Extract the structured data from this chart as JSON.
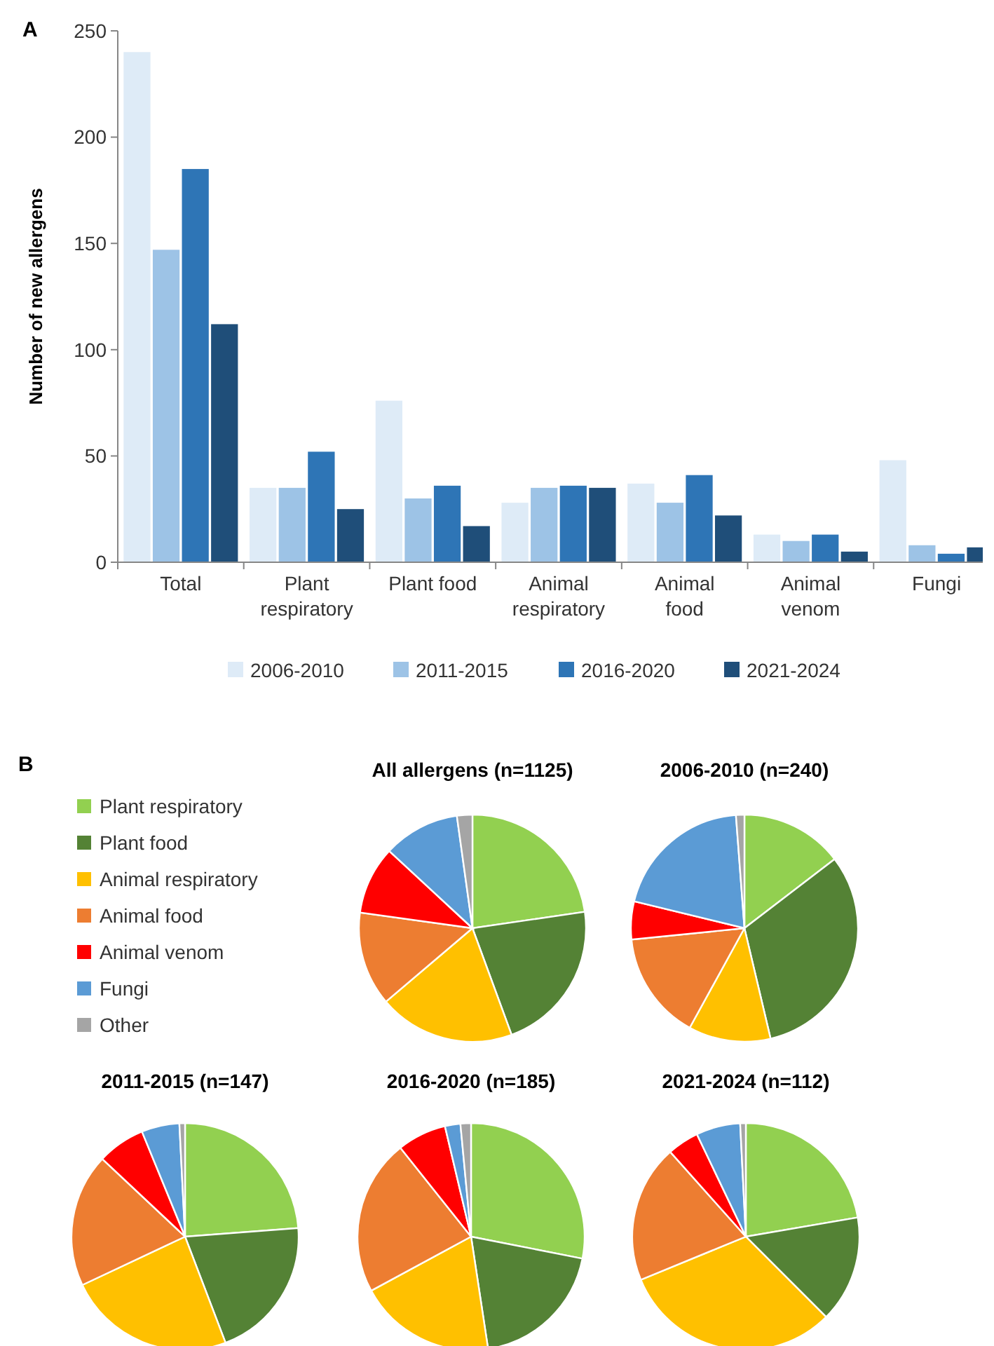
{
  "chart_data": [
    {
      "type": "bar",
      "annotations": [
        "A"
      ],
      "ylabel": "Number of new allergens",
      "categories": [
        "Total",
        "Plant respiratory",
        "Plant food",
        "Animal respiratory",
        "Animal food",
        "Animal venom",
        "Fungi"
      ],
      "series": [
        {
          "name": "2006-2010",
          "color": "#deebf7",
          "values": [
            240,
            35,
            76,
            28,
            37,
            13,
            48
          ]
        },
        {
          "name": "2011-2015",
          "color": "#9dc3e6",
          "values": [
            147,
            35,
            30,
            35,
            28,
            10,
            8
          ]
        },
        {
          "name": "2016-2020",
          "color": "#2e75b6",
          "values": [
            185,
            52,
            36,
            36,
            41,
            13,
            4
          ]
        },
        {
          "name": "2021-2024",
          "color": "#1f4e79",
          "values": [
            112,
            25,
            17,
            35,
            22,
            5,
            7
          ]
        }
      ],
      "ylim": [
        0,
        250
      ],
      "yticks": [
        0,
        50,
        100,
        150,
        200,
        250
      ],
      "legend": "bottom",
      "grid": false
    },
    {
      "type": "pie",
      "title": "All allergens (n=1125)",
      "annotations": [
        "B"
      ],
      "legend": "left",
      "categories": [
        "Plant respiratory",
        "Plant food",
        "Animal respiratory",
        "Animal food",
        "Animal venom",
        "Fungi",
        "Other"
      ],
      "values": [
        22.7,
        21.7,
        19.4,
        13.4,
        9.7,
        10.9,
        2.2
      ],
      "colors": [
        "#92d050",
        "#548235",
        "#ffc000",
        "#ed7d31",
        "#ff0000",
        "#5b9bd5",
        "#a5a5a5"
      ]
    },
    {
      "type": "pie",
      "title": "2006-2010 (n=240)",
      "categories": [
        null,
        null,
        null,
        null,
        null,
        null,
        null
      ],
      "values": [
        14.6,
        31.7,
        11.7,
        15.4,
        5.4,
        20.0,
        1.2
      ],
      "colors": [
        "#92d050",
        "#548235",
        "#ffc000",
        "#ed7d31",
        "#ff0000",
        "#5b9bd5",
        "#a5a5a5"
      ]
    },
    {
      "type": "pie",
      "title": "2011-2015 (n=147)",
      "categories": [
        null,
        null,
        null,
        null,
        null,
        null,
        null
      ],
      "values": [
        23.8,
        20.4,
        23.8,
        19.0,
        6.8,
        5.4,
        0.8
      ],
      "colors": [
        "#92d050",
        "#548235",
        "#ffc000",
        "#ed7d31",
        "#ff0000",
        "#5b9bd5",
        "#a5a5a5"
      ]
    },
    {
      "type": "pie",
      "title": "2016-2020 (n=185)",
      "categories": [
        null,
        null,
        null,
        null,
        null,
        null,
        null
      ],
      "values": [
        28.1,
        19.5,
        19.5,
        22.2,
        7.0,
        2.2,
        1.5
      ],
      "colors": [
        "#92d050",
        "#548235",
        "#ffc000",
        "#ed7d31",
        "#ff0000",
        "#5b9bd5",
        "#a5a5a5"
      ]
    },
    {
      "type": "pie",
      "title": "2021-2024 (n=112)",
      "categories": [
        null,
        null,
        null,
        null,
        null,
        null,
        null
      ],
      "values": [
        22.3,
        15.2,
        31.3,
        19.6,
        4.5,
        6.3,
        0.8
      ],
      "colors": [
        "#92d050",
        "#548235",
        "#ffc000",
        "#ed7d31",
        "#ff0000",
        "#5b9bd5",
        "#a5a5a5"
      ]
    }
  ]
}
